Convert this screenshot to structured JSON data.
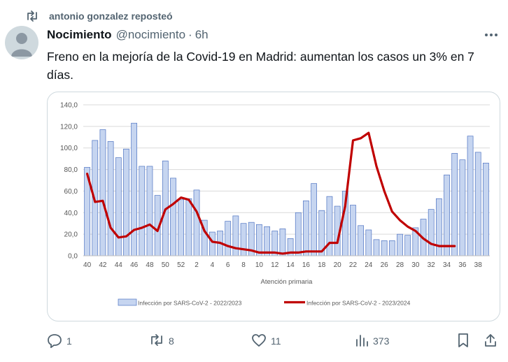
{
  "repost": {
    "label": "antonio gonzalez reposteó",
    "icon": "repost-icon"
  },
  "author": {
    "name": "Nocimiento",
    "handle": "@nocimiento",
    "separator": "·",
    "time": "6h",
    "avatar": "default-avatar"
  },
  "tweet": {
    "text": "Freno en la mejoría de la Covid-19 en Madrid: aumentan los casos un 3% en 7 días."
  },
  "chart_data": {
    "type": "bar",
    "xlabel": "Atención primaria",
    "ylim": [
      0,
      140
    ],
    "y_ticks": [
      "0,0",
      "20,0",
      "40,0",
      "60,0",
      "80,0",
      "100,0",
      "120,0",
      "140,0"
    ],
    "x_tick_labels": [
      "40",
      "42",
      "44",
      "46",
      "48",
      "50",
      "52",
      "2",
      "4",
      "6",
      "8",
      "10",
      "12",
      "14",
      "16",
      "18",
      "20",
      "22",
      "24",
      "26",
      "28",
      "30",
      "32",
      "34",
      "36",
      "38"
    ],
    "grid": true,
    "legend_position": "bottom",
    "series": [
      {
        "name": "Infección por SARS-CoV-2 - 2022/2023",
        "type": "bar",
        "color": "#c6d5f0",
        "edge": "#4f74c2",
        "values": [
          82,
          107,
          117,
          106,
          91,
          99,
          123,
          83,
          83,
          56,
          88,
          72,
          52,
          53,
          61,
          33,
          22,
          23,
          32,
          37,
          30,
          31,
          29,
          27,
          23,
          25,
          16,
          40,
          51,
          67,
          42,
          55,
          46,
          60,
          47,
          28,
          24,
          15,
          14,
          14,
          20,
          19,
          26,
          34,
          43,
          53,
          75,
          95,
          89,
          111,
          96,
          86
        ]
      },
      {
        "name": "Infección por SARS-CoV-2 - 2023/2024",
        "type": "line",
        "color": "#c00000",
        "values": [
          76,
          50,
          51,
          26,
          17,
          18,
          24,
          26,
          29,
          23,
          43,
          48,
          54,
          52,
          41,
          23,
          13,
          12,
          9,
          7,
          6,
          5,
          3,
          3,
          3,
          2,
          3,
          3,
          4,
          4,
          4,
          12,
          12,
          46,
          107,
          109,
          114,
          83,
          60,
          41,
          33,
          27,
          23,
          16,
          11,
          9,
          9,
          9
        ]
      }
    ]
  },
  "actions": [
    {
      "name": "reply",
      "icon": "reply-icon",
      "count": "1"
    },
    {
      "name": "repost",
      "icon": "repost-icon",
      "count": "8"
    },
    {
      "name": "like",
      "icon": "heart-icon",
      "count": "11"
    },
    {
      "name": "views",
      "icon": "views-icon",
      "count": "373"
    },
    {
      "name": "bookmark",
      "icon": "bookmark-icon",
      "count": ""
    },
    {
      "name": "share",
      "icon": "share-icon",
      "count": ""
    }
  ]
}
